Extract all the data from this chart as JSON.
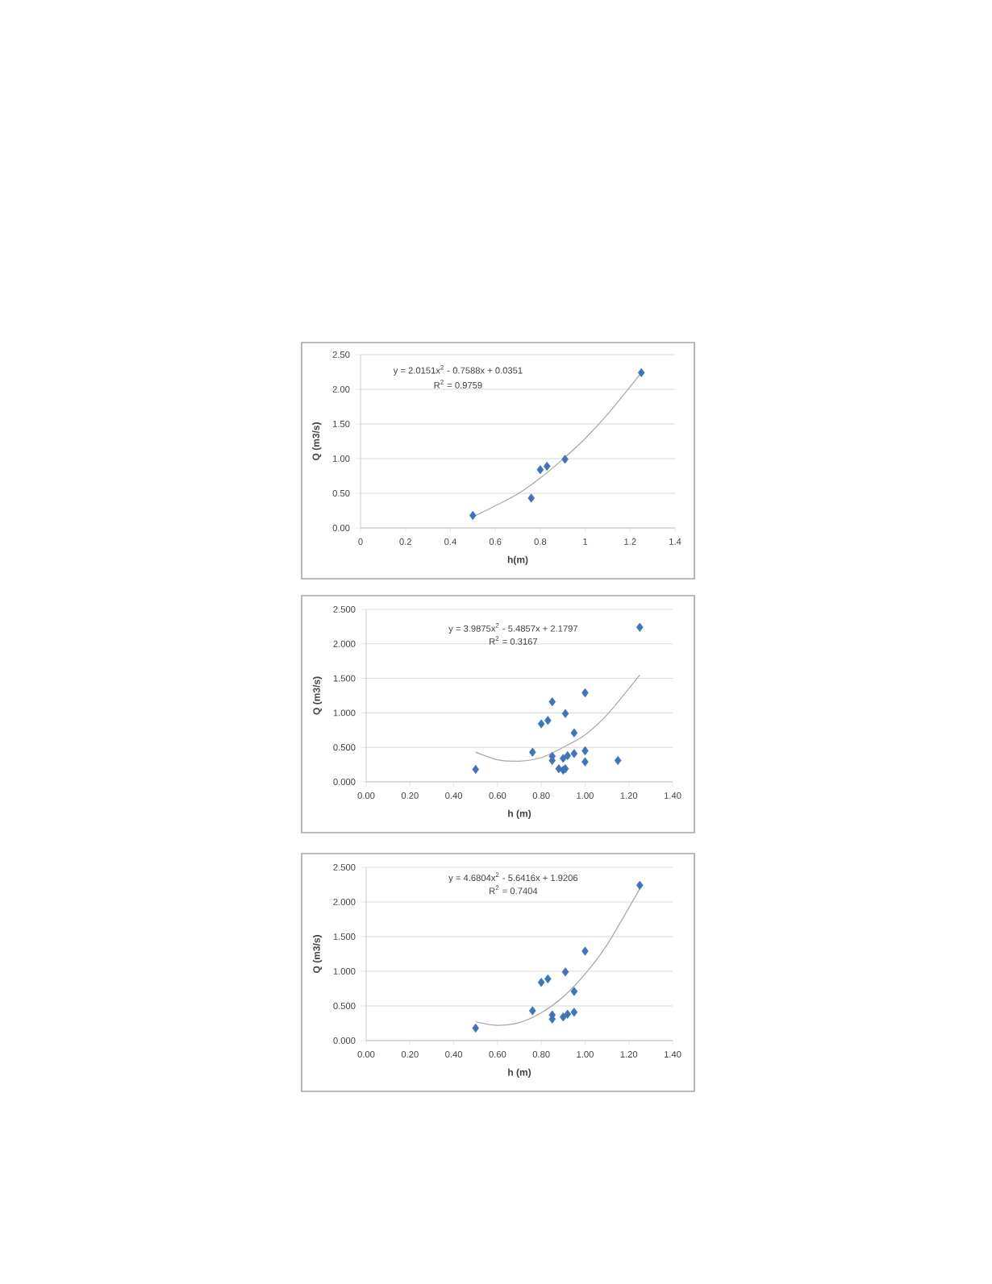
{
  "chart_data": [
    {
      "type": "scatter",
      "xlabel": "h(m)",
      "ylabel": "Q (m3/s)",
      "annotations": [
        "y = 2.0151x$^{2}$ - 0.7588x + 0.0351",
        "R$^{2}$ = 0.9759"
      ],
      "xlim": [
        0,
        1.4
      ],
      "ylim": [
        0,
        2.5
      ],
      "xticks": [
        0,
        0.2,
        0.4,
        0.6,
        0.8,
        1,
        1.2,
        1.4
      ],
      "yticks": [
        {
          "value": 0,
          "label": "0.00"
        },
        {
          "value": 0.5,
          "label": "0.50"
        },
        {
          "value": 1,
          "label": "1.00"
        },
        {
          "value": 1.5,
          "label": "1.50"
        },
        {
          "value": 2,
          "label": "2.00"
        },
        {
          "value": 2.5,
          "label": "2.50"
        }
      ],
      "grid": "y",
      "marker": "diamond",
      "series": [
        {
          "color": "#3f74b9",
          "x": [
            0.5,
            0.76,
            0.8,
            0.83,
            0.91,
            1.25
          ],
          "values": [
            0.18,
            0.43,
            0.84,
            0.89,
            0.99,
            2.24
          ]
        },
        {
          "type": "line",
          "color": "#a6a6a6",
          "marker": "none",
          "x": [
            0.5,
            0.6,
            0.7,
            0.8,
            0.9,
            1.0,
            1.1,
            1.25
          ],
          "values": [
            0.16,
            0.32,
            0.49,
            0.72,
            0.99,
            1.29,
            1.64,
            2.24
          ]
        }
      ]
    },
    {
      "type": "scatter",
      "xlabel": "h (m)",
      "ylabel": "Q (m3/s)",
      "annotations": [
        "y = 3.9875x$^{2}$ - 5.4857x + 2.1797",
        "R$^{2}$ = 0.3167"
      ],
      "xlim": [
        0,
        1.4
      ],
      "ylim": [
        0,
        2.5
      ],
      "xticks": [
        {
          "value": 0,
          "label": "0.00"
        },
        {
          "value": 0.2,
          "label": "0.20"
        },
        {
          "value": 0.4,
          "label": "0.40"
        },
        {
          "value": 0.6,
          "label": "0.60"
        },
        {
          "value": 0.8,
          "label": "0.80"
        },
        {
          "value": 1,
          "label": "1.00"
        },
        {
          "value": 1.2,
          "label": "1.20"
        },
        {
          "value": 1.4,
          "label": "1.40"
        }
      ],
      "yticks": [
        {
          "value": 0,
          "label": "0.000"
        },
        {
          "value": 0.5,
          "label": "0.500"
        },
        {
          "value": 1,
          "label": "1.000"
        },
        {
          "value": 1.5,
          "label": "1.500"
        },
        {
          "value": 2,
          "label": "2.000"
        },
        {
          "value": 2.5,
          "label": "2.500"
        }
      ],
      "grid": "y",
      "marker": "diamond",
      "series": [
        {
          "color": "#3f74b9",
          "x": [
            0.5,
            0.76,
            0.8,
            0.83,
            0.85,
            0.85,
            0.85,
            0.88,
            0.9,
            0.9,
            0.91,
            0.91,
            0.92,
            0.95,
            0.95,
            1.0,
            1.0,
            1.0,
            1.15,
            1.25
          ],
          "values": [
            0.18,
            0.43,
            0.84,
            0.89,
            1.16,
            0.37,
            0.31,
            0.19,
            0.17,
            0.34,
            0.99,
            0.19,
            0.38,
            0.71,
            0.41,
            1.29,
            0.45,
            0.29,
            0.31,
            2.24
          ]
        },
        {
          "type": "line",
          "color": "#a6a6a6",
          "marker": "none",
          "x": [
            0.5,
            0.6,
            0.7,
            0.8,
            0.9,
            1.0,
            1.1,
            1.25
          ],
          "values": [
            0.43,
            0.32,
            0.3,
            0.35,
            0.5,
            0.68,
            0.97,
            1.55
          ]
        }
      ]
    },
    {
      "type": "scatter",
      "xlabel": "h (m)",
      "ylabel": "Q (m3/s)",
      "annotations": [
        "y = 4.6804x$^{2}$ - 5.6416x + 1.9206",
        "R$^{2}$ = 0.7404"
      ],
      "xlim": [
        0,
        1.4
      ],
      "ylim": [
        0,
        2.5
      ],
      "xticks": [
        {
          "value": 0,
          "label": "0.00"
        },
        {
          "value": 0.2,
          "label": "0.20"
        },
        {
          "value": 0.4,
          "label": "0.40"
        },
        {
          "value": 0.6,
          "label": "0.60"
        },
        {
          "value": 0.8,
          "label": "0.80"
        },
        {
          "value": 1,
          "label": "1.00"
        },
        {
          "value": 1.2,
          "label": "1.20"
        },
        {
          "value": 1.4,
          "label": "1.40"
        }
      ],
      "yticks": [
        {
          "value": 0,
          "label": "0.000"
        },
        {
          "value": 0.5,
          "label": "0.500"
        },
        {
          "value": 1,
          "label": "1.000"
        },
        {
          "value": 1.5,
          "label": "1.500"
        },
        {
          "value": 2,
          "label": "2.000"
        },
        {
          "value": 2.5,
          "label": "2.500"
        }
      ],
      "grid": "y",
      "marker": "diamond",
      "series": [
        {
          "color": "#3f74b9",
          "x": [
            0.5,
            0.76,
            0.8,
            0.83,
            0.85,
            0.85,
            0.9,
            0.91,
            0.92,
            0.95,
            0.95,
            1.0,
            1.25
          ],
          "values": [
            0.18,
            0.43,
            0.84,
            0.89,
            0.37,
            0.31,
            0.34,
            0.99,
            0.38,
            0.71,
            0.41,
            1.29,
            2.24
          ]
        },
        {
          "type": "line",
          "color": "#a6a6a6",
          "marker": "none",
          "x": [
            0.5,
            0.6,
            0.7,
            0.8,
            0.9,
            1.0,
            1.1,
            1.25
          ],
          "values": [
            0.27,
            0.22,
            0.26,
            0.4,
            0.63,
            0.96,
            1.38,
            2.19
          ]
        }
      ]
    }
  ]
}
